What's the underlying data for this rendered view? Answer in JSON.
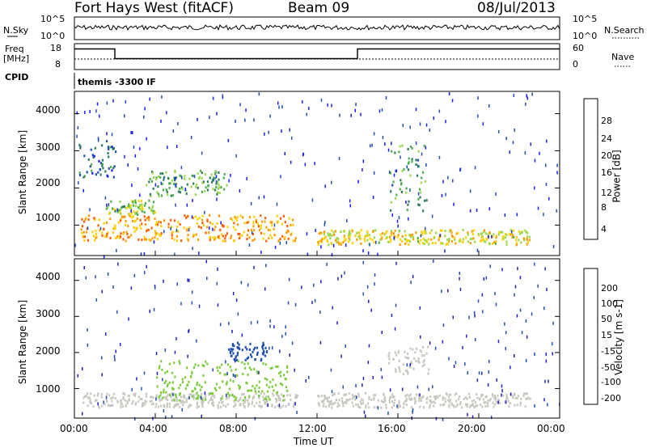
{
  "header": {
    "station": "Fort Hays West (fitACF)",
    "beam": "Beam 09",
    "date": "08/Jul/2013"
  },
  "top_panel": {
    "nsky_label": "N.Sky",
    "nsky_ticks": [
      "10^5",
      "10^0"
    ],
    "nsearch_label": "N.Search",
    "freq_label": "Freq",
    "freq_unit": "[MHz]",
    "freq_ticks": [
      "18",
      "8"
    ],
    "nave_label": "Nave",
    "nave_ticks": [
      "60",
      "0"
    ],
    "cpid_label": "CPID",
    "cpid_value": "themis -3300 IF"
  },
  "x_axis": {
    "label": "Time UT",
    "ticks": [
      "00:00",
      "04:00",
      "08:00",
      "12:00",
      "16:00",
      "20:00",
      "00:00"
    ]
  },
  "colors": {
    "power_scale": [
      "#1a1aff",
      "#1f4fb0",
      "#2e7d5a",
      "#4caf50",
      "#9bd84a",
      "#ffd000",
      "#ff9a00",
      "#ff5a00",
      "#ff2200"
    ],
    "velocity_scale": [
      "#2020c0",
      "#1f4fb0",
      "#2e7d5a",
      "#7ccd3c",
      "#c8c8c0",
      "#ffb000",
      "#ff8c00",
      "#ff5000",
      "#ee0000"
    ]
  },
  "chart_data": [
    {
      "type": "heatmap",
      "title": "Power",
      "xlabel": "Time UT",
      "ylabel": "Slant Range [km]",
      "xlim": [
        0,
        24
      ],
      "ylim": [
        180,
        4600
      ],
      "yticks": [
        "1000",
        "2000",
        "3000",
        "4000"
      ],
      "colorbar": {
        "label": "Power [dB]",
        "ticks": [
          "4",
          "8",
          "12",
          "16",
          "20",
          "24",
          "28"
        ],
        "range": [
          0,
          30
        ]
      },
      "features": [
        {
          "x": [
            0.3,
            11.0
          ],
          "range": [
            600,
            1300
          ],
          "value": 22
        },
        {
          "x": [
            12.0,
            22.5
          ],
          "range": [
            500,
            900
          ],
          "value": 18
        },
        {
          "x": [
            1.5,
            4.0
          ],
          "range": [
            1300,
            1700
          ],
          "value": 14
        },
        {
          "x": [
            3.5,
            7.5
          ],
          "range": [
            1800,
            2500
          ],
          "value": 12
        },
        {
          "x": [
            15.5,
            17.5
          ],
          "range": [
            1400,
            3200
          ],
          "value": 10
        },
        {
          "x": [
            0.2,
            2.0
          ],
          "range": [
            2300,
            3300
          ],
          "value": 6
        }
      ]
    },
    {
      "type": "heatmap",
      "title": "Velocity",
      "xlabel": "Time UT",
      "ylabel": "Slant Range [km]",
      "xlim": [
        0,
        24
      ],
      "ylim": [
        180,
        4600
      ],
      "yticks": [
        "1000",
        "2000",
        "3000",
        "4000"
      ],
      "colorbar": {
        "label": "Velocity [m s-1]",
        "ticks": [
          "200",
          "100",
          "50",
          "15",
          "-15",
          "-50",
          "-100",
          "-200"
        ],
        "range": [
          -250,
          250
        ]
      },
      "features": [
        {
          "x": [
            0.3,
            11.0
          ],
          "range": [
            500,
            900
          ],
          "value": 0
        },
        {
          "x": [
            4.0,
            10.5
          ],
          "range": [
            700,
            1800
          ],
          "value": -60
        },
        {
          "x": [
            7.5,
            9.5
          ],
          "range": [
            1800,
            2300
          ],
          "value": -200
        },
        {
          "x": [
            12.0,
            22.5
          ],
          "range": [
            500,
            900
          ],
          "value": 0
        },
        {
          "x": [
            15.5,
            17.5
          ],
          "range": [
            1400,
            2200
          ],
          "value": 0
        }
      ]
    }
  ]
}
